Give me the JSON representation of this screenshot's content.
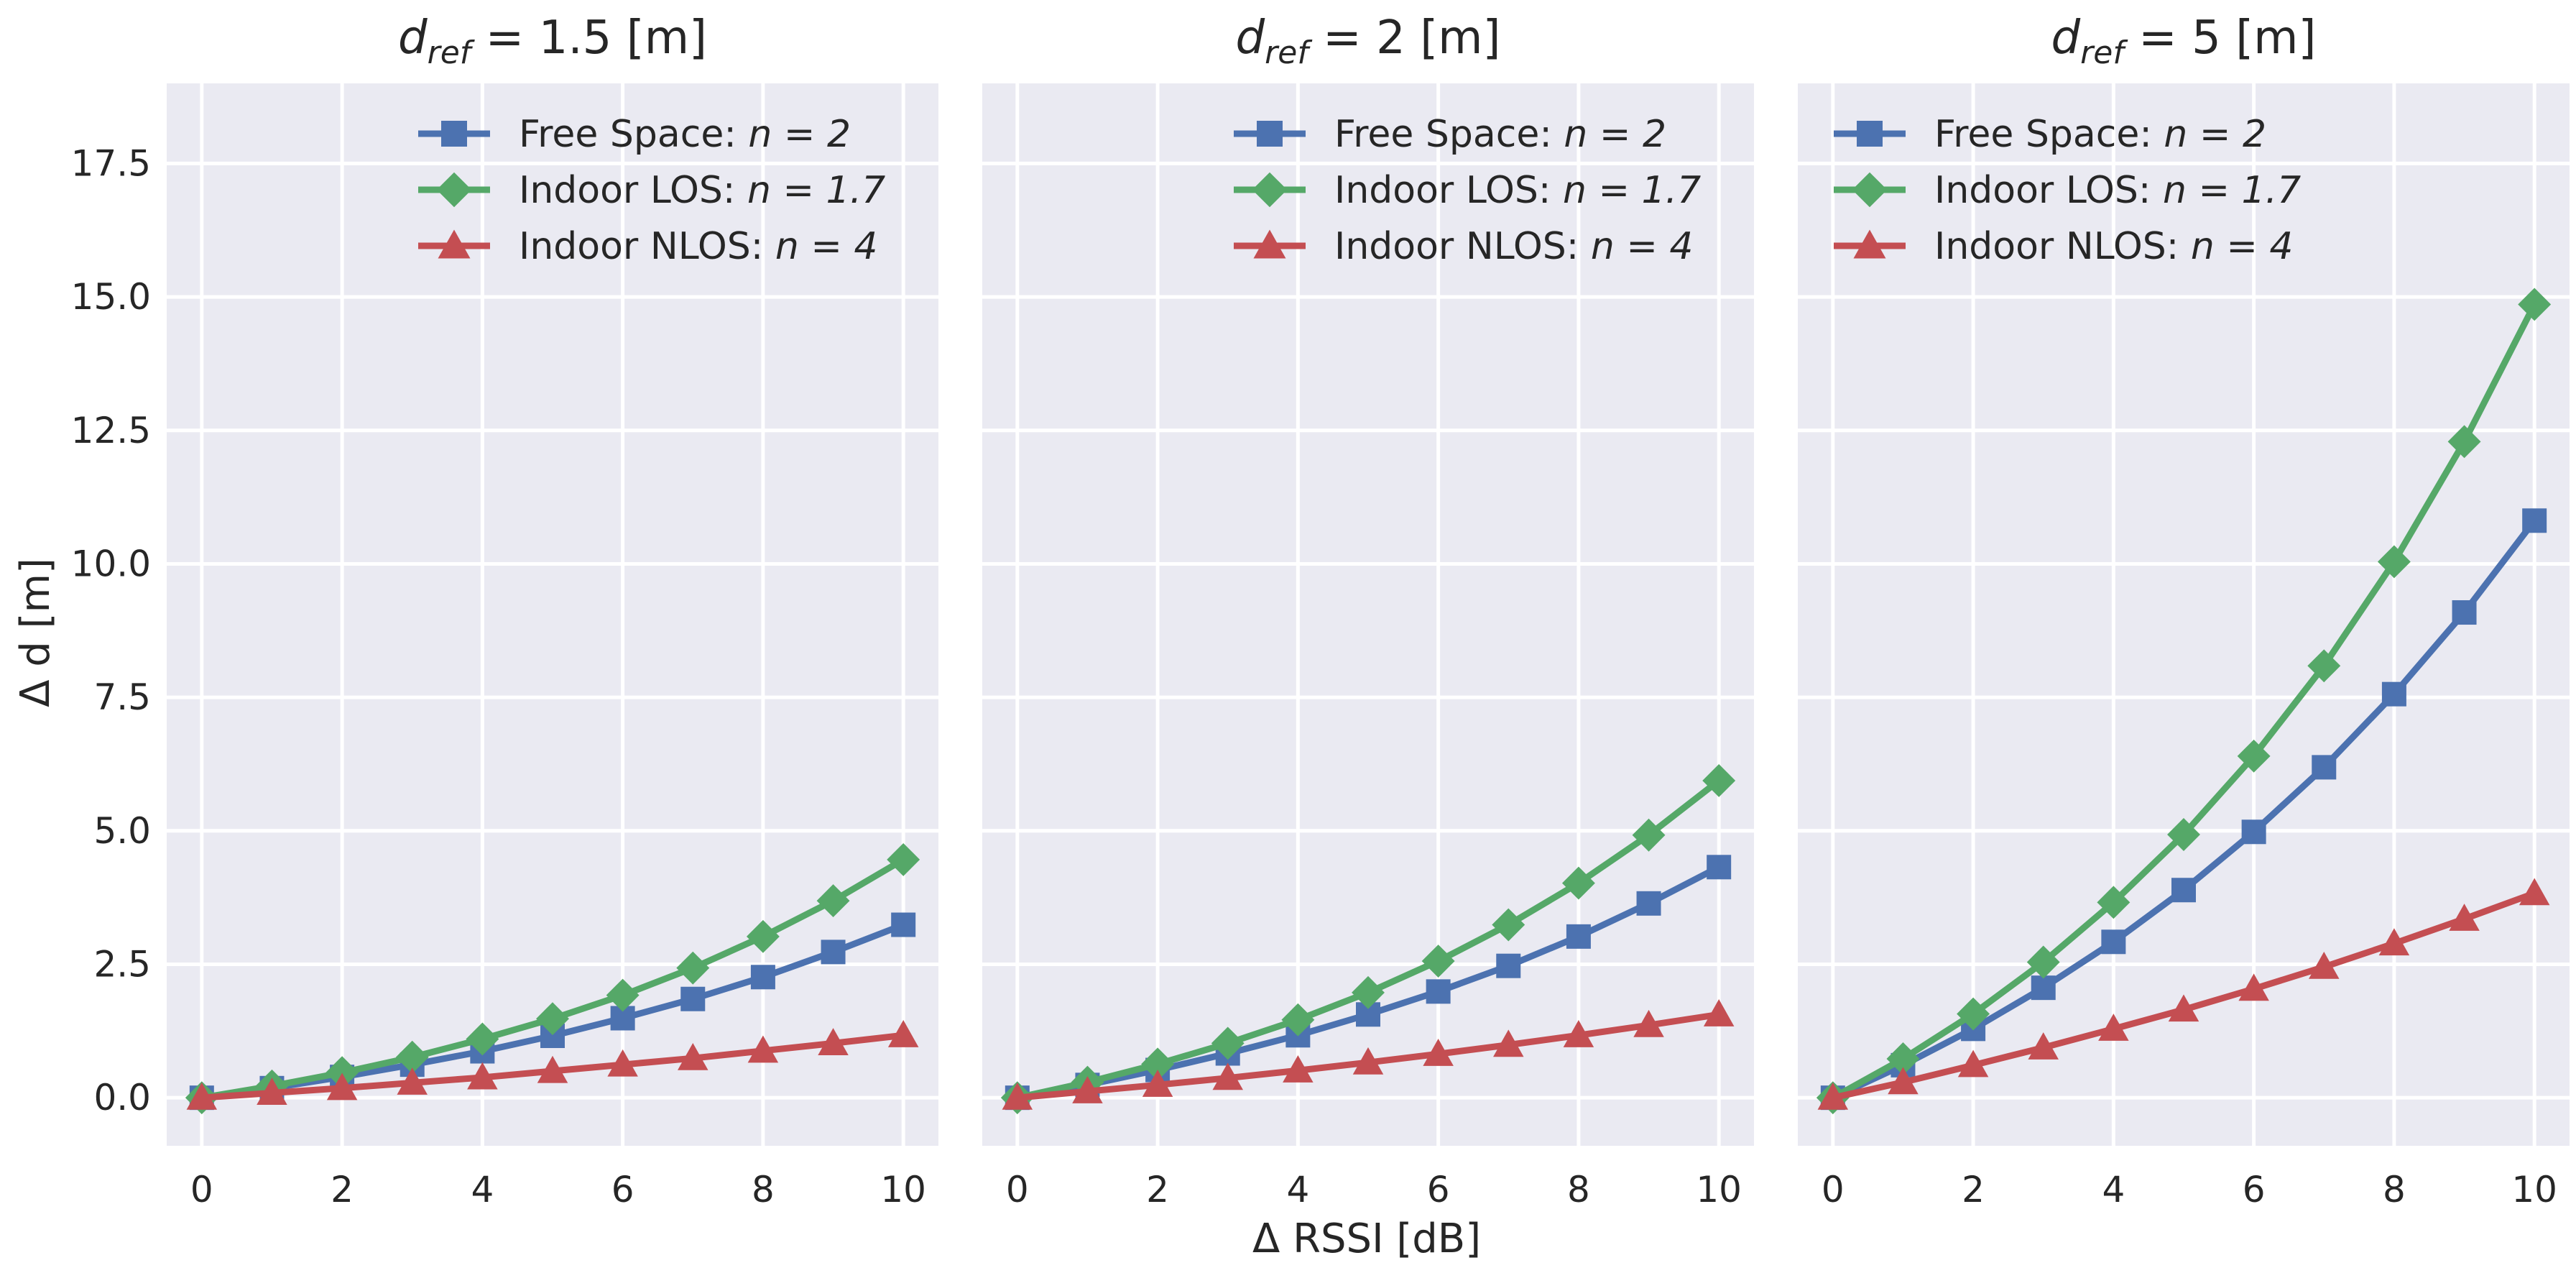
{
  "figure": {
    "xlabel": "Δ RSSI [dB]",
    "ylabel": "Δ d [m]"
  },
  "style": {
    "panel_bg": "#eaeaf2",
    "grid_color": "#ffffff",
    "series_colors": [
      "#4c72b0",
      "#55a868",
      "#c44e52"
    ]
  },
  "chart_data": [
    {
      "type": "line",
      "title": {
        "symbol": "d",
        "subscript": "ref",
        "rest": " = 1.5 [m]"
      },
      "xlabel": "Δ RSSI [dB]",
      "ylabel": "Δ d [m]",
      "xlim": [
        -0.5,
        10.5
      ],
      "ylim": [
        -0.9,
        19.0
      ],
      "xticks": [
        0,
        2,
        4,
        6,
        8,
        10
      ],
      "yticks": [
        0.0,
        2.5,
        5.0,
        7.5,
        10.0,
        12.5,
        15.0,
        17.5
      ],
      "ytick_labels": [
        "0.0",
        "2.5",
        "5.0",
        "7.5",
        "10.0",
        "12.5",
        "15.0",
        "17.5"
      ],
      "grid": true,
      "legend": "top-right",
      "x": [
        0,
        1,
        2,
        3,
        4,
        5,
        6,
        7,
        8,
        9,
        10
      ],
      "series": [
        {
          "name": "Free Space: ",
          "n_label": "n = 2",
          "marker": "square",
          "values": [
            0.0,
            0.18,
            0.39,
            0.62,
            0.87,
            1.16,
            1.49,
            1.85,
            2.26,
            2.73,
            3.24
          ]
        },
        {
          "name": "Indoor LOS: ",
          "n_label": "n = 1.7",
          "marker": "diamond",
          "values": [
            0.0,
            0.22,
            0.47,
            0.76,
            1.1,
            1.48,
            1.92,
            2.43,
            3.02,
            3.69,
            4.46
          ]
        },
        {
          "name": "Indoor NLOS: ",
          "n_label": "n = 4",
          "marker": "triangle",
          "values": [
            0.0,
            0.09,
            0.18,
            0.28,
            0.38,
            0.5,
            0.62,
            0.74,
            0.88,
            1.02,
            1.17
          ]
        }
      ]
    },
    {
      "type": "line",
      "title": {
        "symbol": "d",
        "subscript": "ref",
        "rest": " = 2 [m]"
      },
      "xlabel": "Δ RSSI [dB]",
      "ylabel": "Δ d [m]",
      "xlim": [
        -0.5,
        10.5
      ],
      "ylim": [
        -0.9,
        19.0
      ],
      "xticks": [
        0,
        2,
        4,
        6,
        8,
        10
      ],
      "yticks": [
        0.0,
        2.5,
        5.0,
        7.5,
        10.0,
        12.5,
        15.0,
        17.5
      ],
      "grid": true,
      "legend": "top-right",
      "x": [
        0,
        1,
        2,
        3,
        4,
        5,
        6,
        7,
        8,
        9,
        10
      ],
      "series": [
        {
          "name": "Free Space: ",
          "n_label": "n = 2",
          "marker": "square",
          "values": [
            0.0,
            0.24,
            0.52,
            0.83,
            1.17,
            1.56,
            1.99,
            2.47,
            3.02,
            3.64,
            4.32
          ]
        },
        {
          "name": "Indoor LOS: ",
          "n_label": "n = 1.7",
          "marker": "diamond",
          "values": [
            0.0,
            0.29,
            0.63,
            1.02,
            1.46,
            1.97,
            2.56,
            3.24,
            4.02,
            4.92,
            5.94
          ]
        },
        {
          "name": "Indoor NLOS: ",
          "n_label": "n = 4",
          "marker": "triangle",
          "values": [
            0.0,
            0.12,
            0.24,
            0.37,
            0.51,
            0.66,
            0.82,
            0.99,
            1.17,
            1.36,
            1.56
          ]
        }
      ]
    },
    {
      "type": "line",
      "title": {
        "symbol": "d",
        "subscript": "ref",
        "rest": " = 5 [m]"
      },
      "xlabel": "Δ RSSI [dB]",
      "ylabel": "Δ d [m]",
      "xlim": [
        -0.5,
        10.5
      ],
      "ylim": [
        -0.9,
        19.0
      ],
      "xticks": [
        0,
        2,
        4,
        6,
        8,
        10
      ],
      "yticks": [
        0.0,
        2.5,
        5.0,
        7.5,
        10.0,
        12.5,
        15.0,
        17.5
      ],
      "grid": true,
      "legend": "top-left",
      "x": [
        0,
        1,
        2,
        3,
        4,
        5,
        6,
        7,
        8,
        9,
        10
      ],
      "series": [
        {
          "name": "Free Space: ",
          "n_label": "n = 2",
          "marker": "square",
          "values": [
            0.0,
            0.61,
            1.29,
            2.06,
            2.92,
            3.89,
            4.98,
            6.19,
            7.56,
            9.09,
            10.81
          ]
        },
        {
          "name": "Indoor LOS: ",
          "n_label": "n = 1.7",
          "marker": "diamond",
          "values": [
            0.0,
            0.73,
            1.57,
            2.54,
            3.66,
            4.93,
            6.4,
            8.09,
            10.04,
            12.29,
            14.86
          ]
        },
        {
          "name": "Indoor NLOS: ",
          "n_label": "n = 4",
          "marker": "triangle",
          "values": [
            0.0,
            0.29,
            0.61,
            0.94,
            1.29,
            1.65,
            2.04,
            2.45,
            2.89,
            3.35,
            3.83
          ]
        }
      ]
    }
  ]
}
